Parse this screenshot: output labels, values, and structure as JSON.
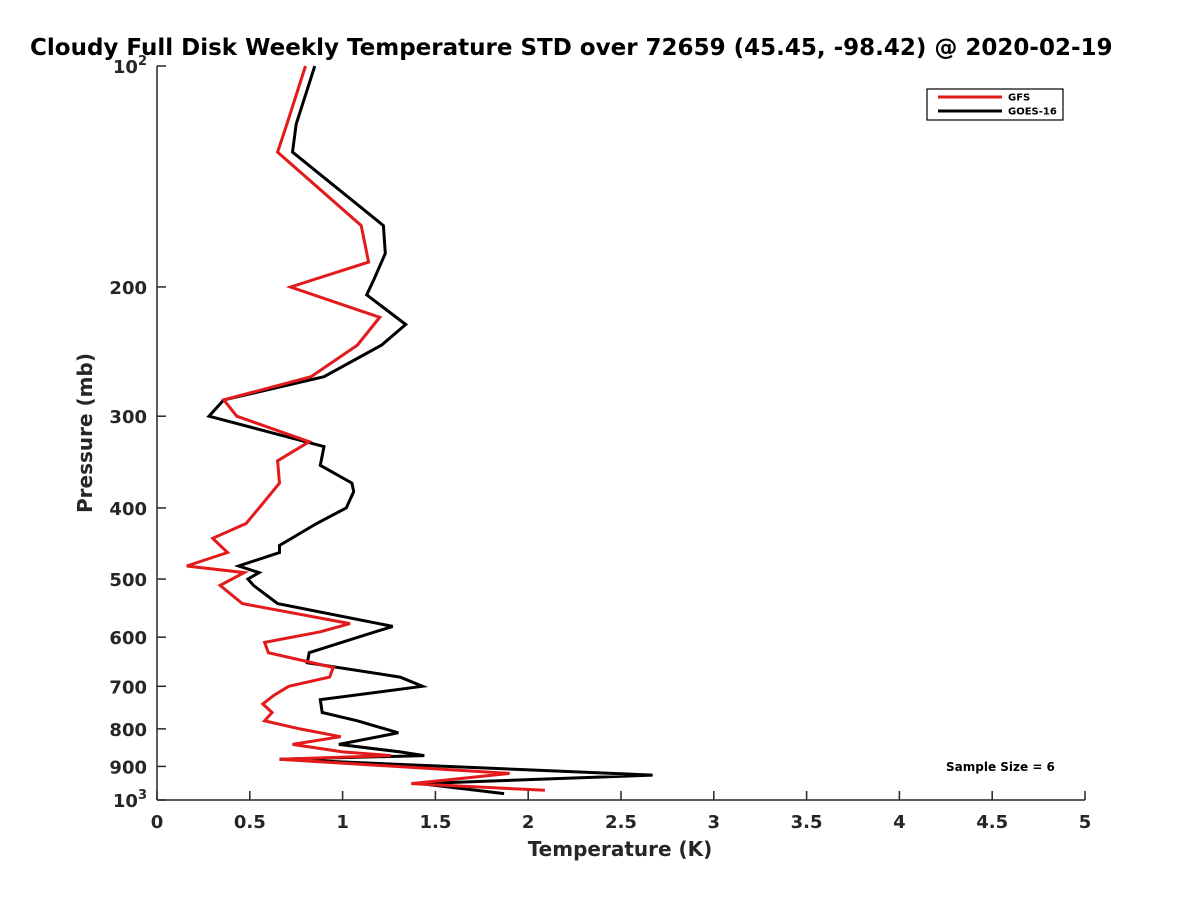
{
  "chart_data": {
    "type": "line",
    "title": "Cloudy Full Disk Weekly Temperature STD over 72659 (45.45, -98.42) @ 2020-02-19",
    "xlabel": "Temperature (K)",
    "ylabel": "Pressure (mb)",
    "xlim": [
      0,
      5
    ],
    "ylim": [
      1000,
      100
    ],
    "y_scale": "log",
    "y_reversed": true,
    "grid": false,
    "legend_position": "top-right",
    "x_ticks": [
      {
        "value": 0,
        "label": "0"
      },
      {
        "value": 0.5,
        "label": "0.5"
      },
      {
        "value": 1,
        "label": "1"
      },
      {
        "value": 1.5,
        "label": "1.5"
      },
      {
        "value": 2,
        "label": "2"
      },
      {
        "value": 2.5,
        "label": "2.5"
      },
      {
        "value": 3,
        "label": "3"
      },
      {
        "value": 3.5,
        "label": "3.5"
      },
      {
        "value": 4,
        "label": "4"
      },
      {
        "value": 4.5,
        "label": "4.5"
      },
      {
        "value": 5,
        "label": "5"
      }
    ],
    "y_ticks": [
      {
        "value": 100,
        "label": "10",
        "sup": "2"
      },
      {
        "value": 200,
        "label": "200",
        "sup": ""
      },
      {
        "value": 300,
        "label": "300",
        "sup": ""
      },
      {
        "value": 400,
        "label": "400",
        "sup": ""
      },
      {
        "value": 500,
        "label": "500",
        "sup": ""
      },
      {
        "value": 600,
        "label": "600",
        "sup": ""
      },
      {
        "value": 700,
        "label": "700",
        "sup": ""
      },
      {
        "value": 800,
        "label": "800",
        "sup": ""
      },
      {
        "value": 900,
        "label": "900",
        "sup": ""
      },
      {
        "value": 1000,
        "label": "10",
        "sup": "3"
      }
    ],
    "series": [
      {
        "name": "GFS",
        "color": "#e31a1c",
        "x": [
          0.8,
          0.7,
          0.65,
          1.1,
          1.14,
          0.72,
          1.2,
          1.08,
          0.83,
          0.36,
          0.43,
          0.82,
          0.65,
          0.66,
          0.55,
          0.48,
          0.3,
          0.38,
          0.16,
          0.47,
          0.34,
          0.46,
          1.04,
          0.88,
          0.58,
          0.6,
          0.95,
          0.93,
          0.71,
          0.63,
          0.57,
          0.62,
          0.58,
          0.77,
          0.99,
          0.73,
          1.0,
          1.26,
          0.66,
          1.9,
          1.37,
          2.09
        ],
        "y": [
          100,
          120,
          131,
          165,
          185,
          200,
          220,
          240,
          265,
          285,
          300,
          325,
          345,
          370,
          400,
          420,
          440,
          460,
          480,
          490,
          510,
          540,
          575,
          590,
          610,
          630,
          660,
          680,
          700,
          720,
          740,
          760,
          780,
          800,
          820,
          840,
          860,
          870,
          880,
          920,
          950,
          970
        ]
      },
      {
        "name": "GOES-16",
        "color": "#000000",
        "x": [
          0.85,
          0.75,
          0.73,
          1.22,
          1.23,
          1.17,
          1.13,
          1.34,
          1.21,
          0.9,
          0.36,
          0.28,
          0.9,
          0.88,
          1.05,
          1.06,
          1.02,
          0.86,
          0.66,
          0.66,
          0.44,
          0.55,
          0.49,
          0.52,
          0.65,
          1.27,
          1.13,
          0.82,
          0.81,
          1.31,
          1.43,
          0.88,
          0.89,
          1.08,
          1.3,
          0.98,
          1.31,
          1.44,
          0.66,
          2.67,
          1.42,
          1.87
        ],
        "y": [
          100,
          120,
          131,
          165,
          180,
          195,
          205,
          225,
          240,
          265,
          285,
          300,
          330,
          350,
          370,
          380,
          400,
          420,
          450,
          460,
          480,
          490,
          500,
          510,
          540,
          580,
          595,
          630,
          650,
          680,
          700,
          730,
          760,
          780,
          810,
          840,
          860,
          870,
          880,
          925,
          950,
          980
        ]
      }
    ],
    "annotations": [
      {
        "text": "Sample Size = 6"
      }
    ]
  }
}
